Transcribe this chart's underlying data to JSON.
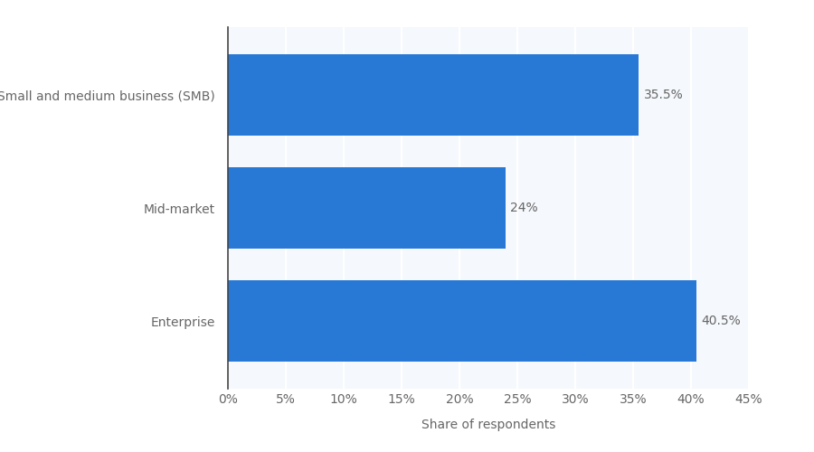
{
  "categories": [
    "Enterprise",
    "Mid-market",
    "Small and medium business (SMB)"
  ],
  "values": [
    40.5,
    24.0,
    35.5
  ],
  "labels": [
    "40.5%",
    "24%",
    "35.5%"
  ],
  "bar_color": "#2878d6",
  "plot_bg_color": "#f5f8fc",
  "fig_bg_color": "#ffffff",
  "xlabel": "Share of respondents",
  "xlim": [
    0,
    45
  ],
  "xticks": [
    0,
    5,
    10,
    15,
    20,
    25,
    30,
    35,
    40,
    45
  ],
  "xlabel_fontsize": 10,
  "tick_label_fontsize": 10,
  "bar_label_fontsize": 10,
  "ytick_fontsize": 10,
  "grid_color": "#ffffff",
  "bar_height": 0.72,
  "label_color": "#666666",
  "spine_color": "#aaaaaa"
}
